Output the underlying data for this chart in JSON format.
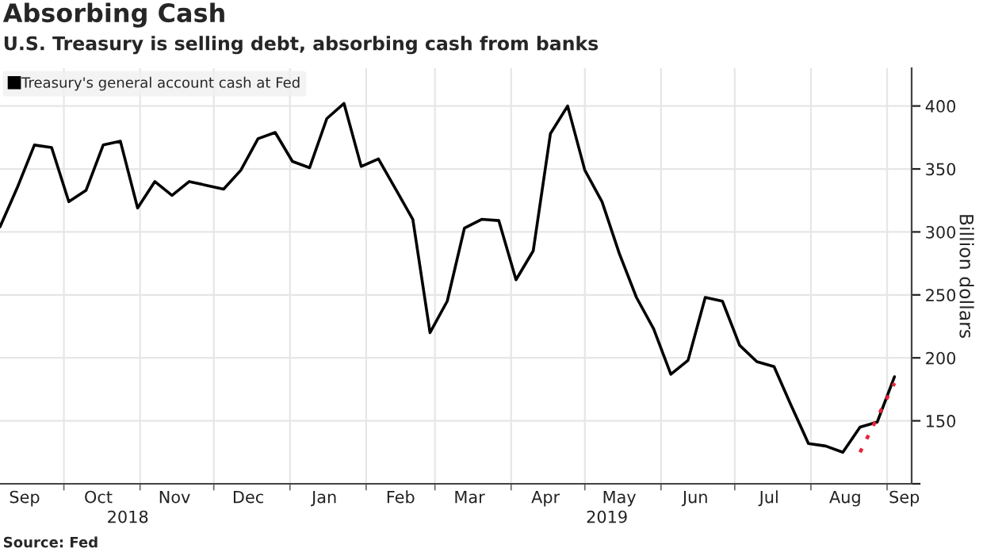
{
  "chart_data": {
    "type": "line",
    "title": "Absorbing Cash",
    "subtitle": "U.S. Treasury is selling debt, absorbing cash from banks",
    "ylabel": "Billion dollars",
    "annotations": [
      "Source: Fed"
    ],
    "x": [
      "2018-09-05",
      "2018-09-12",
      "2018-09-19",
      "2018-09-26",
      "2018-10-03",
      "2018-10-10",
      "2018-10-17",
      "2018-10-24",
      "2018-10-31",
      "2018-11-07",
      "2018-11-14",
      "2018-11-21",
      "2018-11-28",
      "2018-12-05",
      "2018-12-12",
      "2018-12-19",
      "2018-12-26",
      "2019-01-02",
      "2019-01-09",
      "2019-01-16",
      "2019-01-23",
      "2019-01-30",
      "2019-02-06",
      "2019-02-13",
      "2019-02-20",
      "2019-02-27",
      "2019-03-06",
      "2019-03-13",
      "2019-03-20",
      "2019-03-27",
      "2019-04-03",
      "2019-04-10",
      "2019-04-17",
      "2019-04-24",
      "2019-05-01",
      "2019-05-08",
      "2019-05-15",
      "2019-05-22",
      "2019-05-29",
      "2019-06-05",
      "2019-06-12",
      "2019-06-19",
      "2019-06-26",
      "2019-07-03",
      "2019-07-10",
      "2019-07-17",
      "2019-07-24",
      "2019-07-31",
      "2019-08-07",
      "2019-08-14",
      "2019-08-21",
      "2019-08-28",
      "2019-09-04"
    ],
    "series": [
      {
        "name": "Treasury's general account cash at Fed",
        "color": "#000000",
        "values": [
          304,
          335,
          369,
          367,
          324,
          333,
          369,
          372,
          319,
          340,
          329,
          340,
          337,
          334,
          349,
          374,
          379,
          356,
          351,
          390,
          402,
          352,
          358,
          334,
          310,
          220,
          245,
          303,
          310,
          309,
          262,
          285,
          378,
          400,
          349,
          324,
          283,
          248,
          223,
          187,
          198,
          248,
          245,
          210,
          197,
          193,
          162,
          132,
          130,
          125,
          145,
          149,
          185
        ]
      },
      {
        "type": "line",
        "color": "#e8213a",
        "line_style": "dotted",
        "x": [
          "2019-08-21",
          "2019-09-04"
        ],
        "values": [
          125,
          180
        ]
      }
    ],
    "xlim": [
      "2018-09-05",
      "2019-09-11"
    ],
    "xticks": [
      {
        "value": "2018-09-15",
        "label": "Sep"
      },
      {
        "value": "2018-10-15",
        "label": "Oct"
      },
      {
        "value": "2018-11-15",
        "label": "Nov"
      },
      {
        "value": "2018-12-15",
        "label": "Dec"
      },
      {
        "value": "2019-01-15",
        "label": "Jan"
      },
      {
        "value": "2019-02-15",
        "label": "Feb"
      },
      {
        "value": "2019-03-15",
        "label": "Mar"
      },
      {
        "value": "2019-04-15",
        "label": "Apr"
      },
      {
        "value": "2019-05-15",
        "label": "May"
      },
      {
        "value": "2019-06-15",
        "label": "Jun"
      },
      {
        "value": "2019-07-15",
        "label": "Jul"
      },
      {
        "value": "2019-08-15",
        "label": "Aug"
      },
      {
        "value": "2019-09-08",
        "label": "Sep"
      },
      {
        "value": "2018-10-01",
        "label": null
      },
      {
        "value": "2018-11-01",
        "label": null
      },
      {
        "value": "2018-12-01",
        "label": null
      },
      {
        "value": "2019-01-01",
        "label": null
      },
      {
        "value": "2019-02-01",
        "label": null
      },
      {
        "value": "2019-03-01",
        "label": null
      },
      {
        "value": "2019-04-01",
        "label": null
      },
      {
        "value": "2019-05-01",
        "label": null
      },
      {
        "value": "2019-06-01",
        "label": null
      },
      {
        "value": "2019-07-01",
        "label": null
      },
      {
        "value": "2019-08-01",
        "label": null
      },
      {
        "value": "2019-09-01",
        "label": null
      }
    ],
    "x2lim": [
      "2018-09-05",
      "2019-09-11"
    ],
    "x2ticks": [
      {
        "value": "2018-10-27",
        "label": "2018"
      },
      {
        "value": "2019-05-10",
        "label": "2019"
      }
    ],
    "ylim": [
      100,
      430
    ],
    "yticks": [
      {
        "value": 100,
        "label": null
      },
      150,
      200,
      250,
      300,
      350,
      400
    ],
    "grid": true,
    "legend": "top left",
    "line_style": "solid",
    "marker": "none"
  }
}
